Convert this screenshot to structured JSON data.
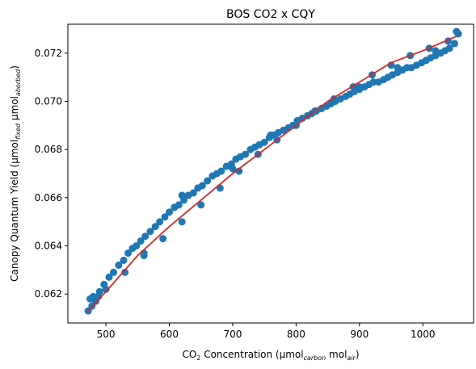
{
  "chart_data": {
    "type": "scatter",
    "title": "BOS CO2 x CQY",
    "xlabel": {
      "parts": [
        "CO",
        "2",
        " Concentration (µmol",
        "carbon",
        " mol",
        "air",
        ")"
      ]
    },
    "ylabel": {
      "parts": [
        "Canopy Quantum Yield (µmol",
        "fixed",
        " µmol",
        "aborbed",
        ")"
      ]
    },
    "xlim": [
      440,
      1080
    ],
    "ylim": [
      0.0608,
      0.0732
    ],
    "xticks": [
      500,
      600,
      700,
      800,
      900,
      1000
    ],
    "xtick_labels": [
      "500",
      "600",
      "700",
      "800",
      "900",
      "1000"
    ],
    "yticks": [
      0.062,
      0.064,
      0.066,
      0.068,
      0.07,
      0.072
    ],
    "ytick_labels": [
      "0.062",
      "0.064",
      "0.066",
      "0.068",
      "0.070",
      "0.072"
    ],
    "grid": false,
    "series": [
      {
        "kind": "scatter",
        "color": "#1f77b4",
        "x": [
          472,
          475,
          480,
          484,
          490,
          497,
          505,
          512,
          520,
          528,
          535,
          542,
          548,
          555,
          562,
          570,
          578,
          585,
          593,
          600,
          608,
          615,
          623,
          630,
          638,
          645,
          652,
          660,
          668,
          675,
          682,
          690,
          698,
          705,
          712,
          720,
          728,
          735,
          742,
          750,
          758,
          765,
          772,
          780,
          788,
          795,
          802,
          810,
          818,
          825,
          832,
          840,
          848,
          855,
          862,
          870,
          878,
          885,
          892,
          900,
          908,
          915,
          922,
          930,
          938,
          945,
          952,
          960,
          968,
          975,
          982,
          990,
          998,
          1005,
          1012,
          1020,
          1028,
          1035,
          1042,
          1050,
          1053,
          1056,
          1040,
          1010,
          980,
          950,
          920,
          890,
          860,
          830,
          800,
          770,
          740,
          710,
          680,
          650,
          620,
          590,
          560,
          530,
          500,
          478,
          488,
          560,
          620,
          700,
          760,
          840,
          900,
          960,
          1020
        ],
        "y": [
          0.0613,
          0.0618,
          0.0619,
          0.0617,
          0.0621,
          0.0624,
          0.0627,
          0.0629,
          0.0632,
          0.0634,
          0.0637,
          0.0639,
          0.064,
          0.0642,
          0.0644,
          0.0646,
          0.0648,
          0.065,
          0.0652,
          0.0654,
          0.0656,
          0.0657,
          0.0659,
          0.0661,
          0.0662,
          0.0664,
          0.0665,
          0.0667,
          0.0669,
          0.067,
          0.0671,
          0.0673,
          0.0674,
          0.0676,
          0.0677,
          0.0678,
          0.068,
          0.0681,
          0.0682,
          0.0683,
          0.0685,
          0.0686,
          0.0687,
          0.0688,
          0.0689,
          0.069,
          0.0692,
          0.0693,
          0.0694,
          0.0695,
          0.0696,
          0.0697,
          0.0698,
          0.0699,
          0.07,
          0.0701,
          0.0702,
          0.0703,
          0.0704,
          0.0705,
          0.0706,
          0.0707,
          0.0708,
          0.0708,
          0.0709,
          0.071,
          0.0711,
          0.0712,
          0.0713,
          0.0714,
          0.0714,
          0.0715,
          0.0716,
          0.0717,
          0.0718,
          0.0719,
          0.072,
          0.0721,
          0.0722,
          0.0724,
          0.0729,
          0.0728,
          0.0725,
          0.0722,
          0.0719,
          0.0715,
          0.0711,
          0.0706,
          0.0701,
          0.0696,
          0.069,
          0.0684,
          0.0678,
          0.0671,
          0.0664,
          0.0657,
          0.065,
          0.0643,
          0.0636,
          0.0629,
          0.0622,
          0.0615,
          0.0619,
          0.0637,
          0.0661,
          0.0672,
          0.0686,
          0.0697,
          0.0706,
          0.0714,
          0.0721
        ]
      },
      {
        "kind": "line",
        "color": "#d62728",
        "x": [
          472,
          500,
          550,
          600,
          650,
          700,
          750,
          800,
          850,
          900,
          950,
          1000,
          1053
        ],
        "y": [
          0.0613,
          0.0621,
          0.0636,
          0.0648,
          0.0659,
          0.067,
          0.068,
          0.069,
          0.07,
          0.0708,
          0.0716,
          0.0721,
          0.0727
        ]
      }
    ]
  }
}
